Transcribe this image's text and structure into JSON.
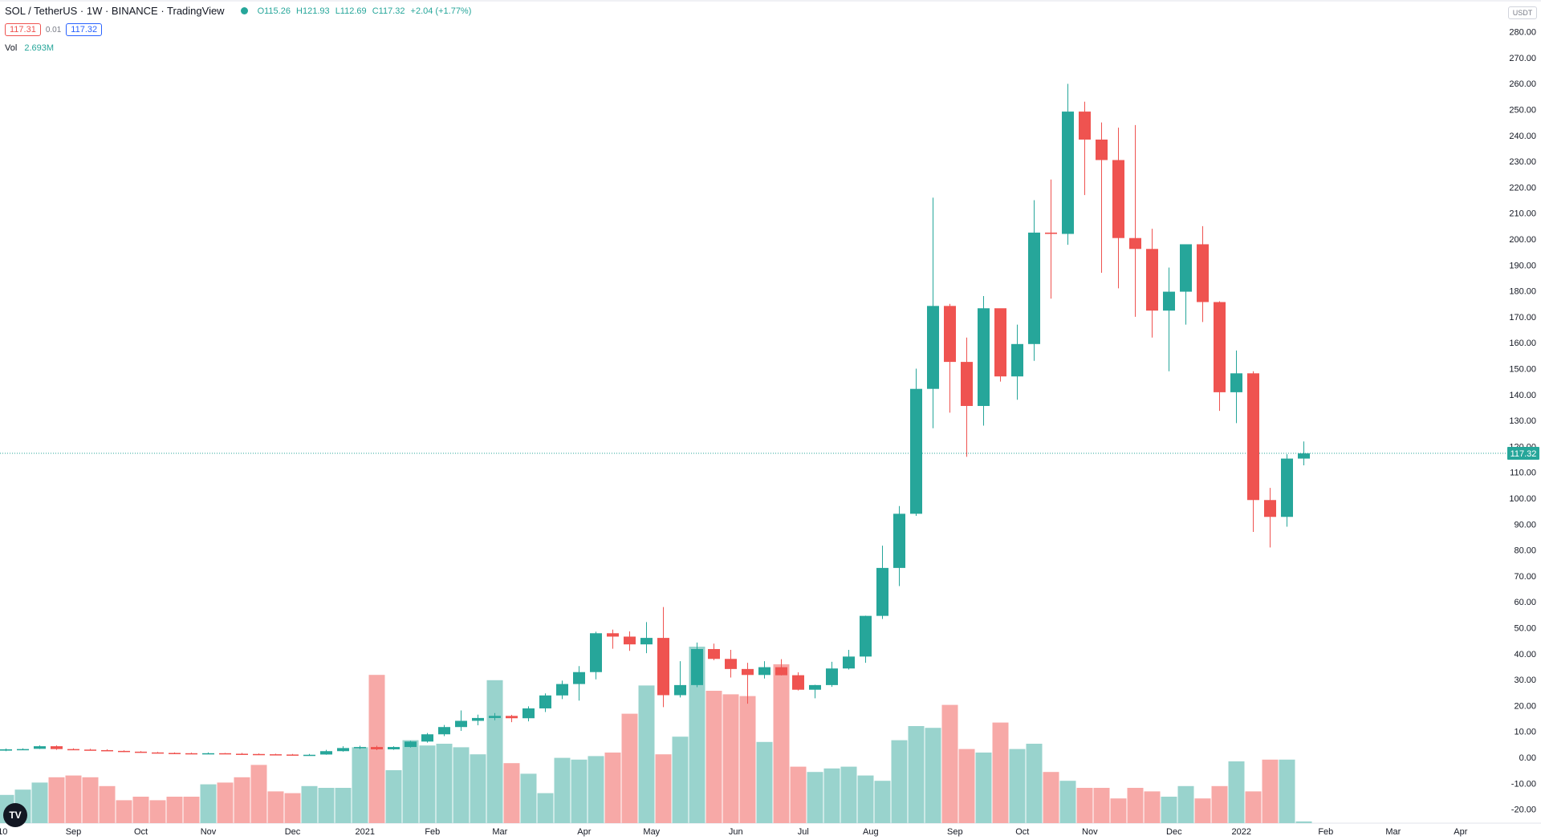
{
  "header": {
    "symbol": "SOL / TetherUS · 1W · BINANCE · TradingView",
    "open": "O115.26",
    "high": "H121.93",
    "low": "L112.69",
    "close": "C117.32",
    "change": "+2.04 (+1.77%)",
    "bid": "117.31",
    "spread": "0.01",
    "ask": "117.32",
    "vol_label": "Vol",
    "vol_value": "2.693M",
    "currency": "USDT"
  },
  "colors": {
    "up": "#26a69a",
    "down": "#ef5350",
    "vol_up": "#99d3cd",
    "vol_down": "#f7a9a7"
  },
  "icons": {
    "logo": "tradingview-logo",
    "settings": "gear-icon"
  },
  "chart_data": {
    "type": "candlestick",
    "price_label": "117.32",
    "y_ticks": [
      "280.00",
      "270.00",
      "260.00",
      "250.00",
      "240.00",
      "230.00",
      "220.00",
      "210.00",
      "200.00",
      "190.00",
      "180.00",
      "170.00",
      "160.00",
      "150.00",
      "140.00",
      "130.00",
      "120.00",
      "110.00",
      "100.00",
      "90.00",
      "80.00",
      "70.00",
      "60.00",
      "50.00",
      "40.00",
      "30.00",
      "20.00",
      "10.00",
      "0.00",
      "-10.00",
      "-20.00"
    ],
    "y_tick_values": [
      280,
      270,
      260,
      250,
      240,
      230,
      220,
      210,
      200,
      190,
      180,
      170,
      160,
      150,
      140,
      130,
      120,
      110,
      100,
      90,
      80,
      70,
      60,
      50,
      40,
      30,
      20,
      10,
      0,
      -10,
      -20
    ],
    "x_labels": [
      "10",
      "Sep",
      "Oct",
      "Nov",
      "Dec",
      "2021",
      "Feb",
      "Mar",
      "Apr",
      "May",
      "Jun",
      "Jul",
      "Aug",
      "Sep",
      "Oct",
      "Nov",
      "Dec",
      "2022",
      "Feb",
      "Mar",
      "Apr"
    ],
    "x_label_weeks": [
      -0.2,
      4,
      8,
      12,
      17,
      21.3,
      25.3,
      29.3,
      34.3,
      38.3,
      43.3,
      47.3,
      51.3,
      56.3,
      60.3,
      64.3,
      69.3,
      73.3,
      78.3,
      82.3,
      86.3
    ],
    "current_price": 117.32,
    "candles": [
      [
        2.6,
        3.4,
        2.4,
        3.1
      ],
      [
        3.1,
        3.5,
        2.8,
        3.2
      ],
      [
        3.3,
        4.6,
        3.2,
        4.3
      ],
      [
        4.3,
        4.6,
        2.9,
        3.2
      ],
      [
        3.2,
        3.5,
        2.9,
        3.0
      ],
      [
        3.0,
        3.3,
        2.7,
        2.8
      ],
      [
        2.8,
        3.1,
        2.5,
        2.6
      ],
      [
        2.5,
        2.7,
        2.0,
        2.2
      ],
      [
        2.2,
        2.4,
        1.8,
        1.9
      ],
      [
        1.9,
        2.1,
        1.6,
        1.7
      ],
      [
        1.7,
        1.9,
        1.5,
        1.6
      ],
      [
        1.6,
        1.8,
        1.4,
        1.5
      ],
      [
        1.5,
        1.9,
        1.4,
        1.6
      ],
      [
        1.6,
        1.7,
        1.3,
        1.4
      ],
      [
        1.4,
        1.7,
        1.2,
        1.3
      ],
      [
        1.3,
        1.5,
        1.1,
        1.2
      ],
      [
        1.2,
        1.4,
        1.0,
        1.1
      ],
      [
        1.1,
        1.3,
        0.9,
        1.0
      ],
      [
        1.0,
        1.3,
        0.9,
        1.0
      ],
      [
        1.1,
        2.9,
        1.0,
        2.4
      ],
      [
        2.4,
        4.3,
        2.2,
        3.6
      ],
      [
        3.6,
        4.5,
        3.2,
        4.0
      ],
      [
        4.0,
        4.5,
        2.8,
        3.1
      ],
      [
        3.1,
        4.3,
        2.9,
        4.0
      ],
      [
        4.0,
        6.4,
        3.8,
        6.1
      ],
      [
        6.1,
        9.4,
        5.7,
        8.9
      ],
      [
        8.9,
        12.5,
        8.2,
        11.7
      ],
      [
        11.7,
        18.1,
        10.2,
        14.1
      ],
      [
        14.1,
        16.5,
        12.4,
        15.2
      ],
      [
        15.2,
        17.1,
        14.3,
        16.0
      ],
      [
        16.0,
        16.4,
        13.6,
        15.1
      ],
      [
        15.1,
        19.7,
        13.9,
        18.9
      ],
      [
        18.9,
        24.7,
        17.5,
        23.9
      ],
      [
        23.9,
        29.6,
        22.5,
        28.3
      ],
      [
        28.3,
        35.2,
        21.9,
        32.9
      ],
      [
        32.9,
        48.5,
        30.1,
        47.9
      ],
      [
        47.9,
        49.3,
        41.9,
        46.6
      ],
      [
        46.6,
        48.6,
        41.1,
        43.6
      ],
      [
        43.6,
        52.2,
        40.2,
        46.1
      ],
      [
        46.1,
        58.0,
        19.4,
        24.0
      ],
      [
        24.0,
        37.1,
        23.1,
        27.9
      ],
      [
        27.9,
        44.3,
        27.1,
        41.8
      ],
      [
        41.8,
        43.9,
        37.5,
        38.0
      ],
      [
        38.0,
        41.5,
        30.8,
        34.1
      ],
      [
        34.1,
        36.5,
        20.7,
        31.8
      ],
      [
        31.8,
        37.1,
        30.4,
        34.8
      ],
      [
        34.8,
        37.9,
        31.6,
        31.7
      ],
      [
        31.7,
        32.8,
        25.8,
        26.1
      ],
      [
        26.1,
        28.0,
        22.8,
        27.9
      ],
      [
        27.9,
        36.9,
        27.2,
        34.3
      ],
      [
        34.3,
        41.5,
        33.9,
        38.9
      ],
      [
        38.9,
        54.7,
        36.5,
        54.6
      ],
      [
        54.6,
        81.7,
        53.4,
        73.1
      ],
      [
        73.1,
        97.0,
        66.1,
        94.0
      ],
      [
        94.0,
        150.0,
        93.2,
        142.2
      ],
      [
        142.2,
        216.0,
        127.0,
        174.2
      ],
      [
        174.2,
        175.0,
        133.0,
        152.6
      ],
      [
        152.6,
        162.0,
        116.0,
        135.6
      ],
      [
        135.6,
        178.0,
        128.0,
        173.3
      ],
      [
        173.3,
        171.0,
        145.0,
        147.0
      ],
      [
        147.0,
        167.0,
        138.0,
        159.5
      ],
      [
        159.5,
        215.0,
        153.0,
        202.5
      ],
      [
        202.5,
        223.0,
        177.0,
        202.0
      ],
      [
        202.0,
        259.9,
        197.8,
        249.2
      ],
      [
        249.2,
        253.0,
        217.0,
        238.4
      ],
      [
        238.4,
        245.0,
        187.0,
        230.5
      ],
      [
        230.5,
        243.0,
        181.0,
        200.4
      ],
      [
        200.4,
        244.0,
        170.0,
        196.2
      ],
      [
        196.2,
        204.0,
        162.0,
        172.4
      ],
      [
        172.4,
        189.0,
        149.0,
        179.7
      ],
      [
        179.7,
        198.0,
        167.0,
        198.0
      ],
      [
        198.0,
        205.0,
        168.0,
        175.7
      ],
      [
        175.7,
        176.0,
        133.7,
        140.9
      ],
      [
        140.9,
        157.0,
        129.0,
        148.2
      ],
      [
        148.2,
        149.0,
        87.0,
        99.3
      ],
      [
        99.3,
        104.0,
        81.0,
        92.8
      ],
      [
        92.8,
        117.0,
        89.0,
        115.3
      ],
      [
        115.3,
        121.9,
        112.7,
        117.3
      ]
    ],
    "volume_scale_pct": [
      16,
      19,
      23,
      26,
      27,
      26,
      21,
      13,
      15,
      13,
      15,
      15,
      22,
      23,
      26,
      33,
      18,
      17,
      21,
      20,
      20,
      43,
      84,
      30,
      47,
      44,
      45,
      43,
      39,
      81,
      34,
      28,
      17,
      37,
      36,
      38,
      40,
      62,
      78,
      39,
      49,
      100,
      75,
      73,
      72,
      46,
      90,
      32,
      29,
      31,
      32,
      27,
      24,
      47,
      55,
      54,
      67,
      42,
      40,
      57,
      42,
      45,
      29,
      24,
      20,
      20,
      14,
      20,
      18,
      15,
      21,
      14,
      21,
      35,
      18,
      36,
      36,
      1
    ]
  }
}
